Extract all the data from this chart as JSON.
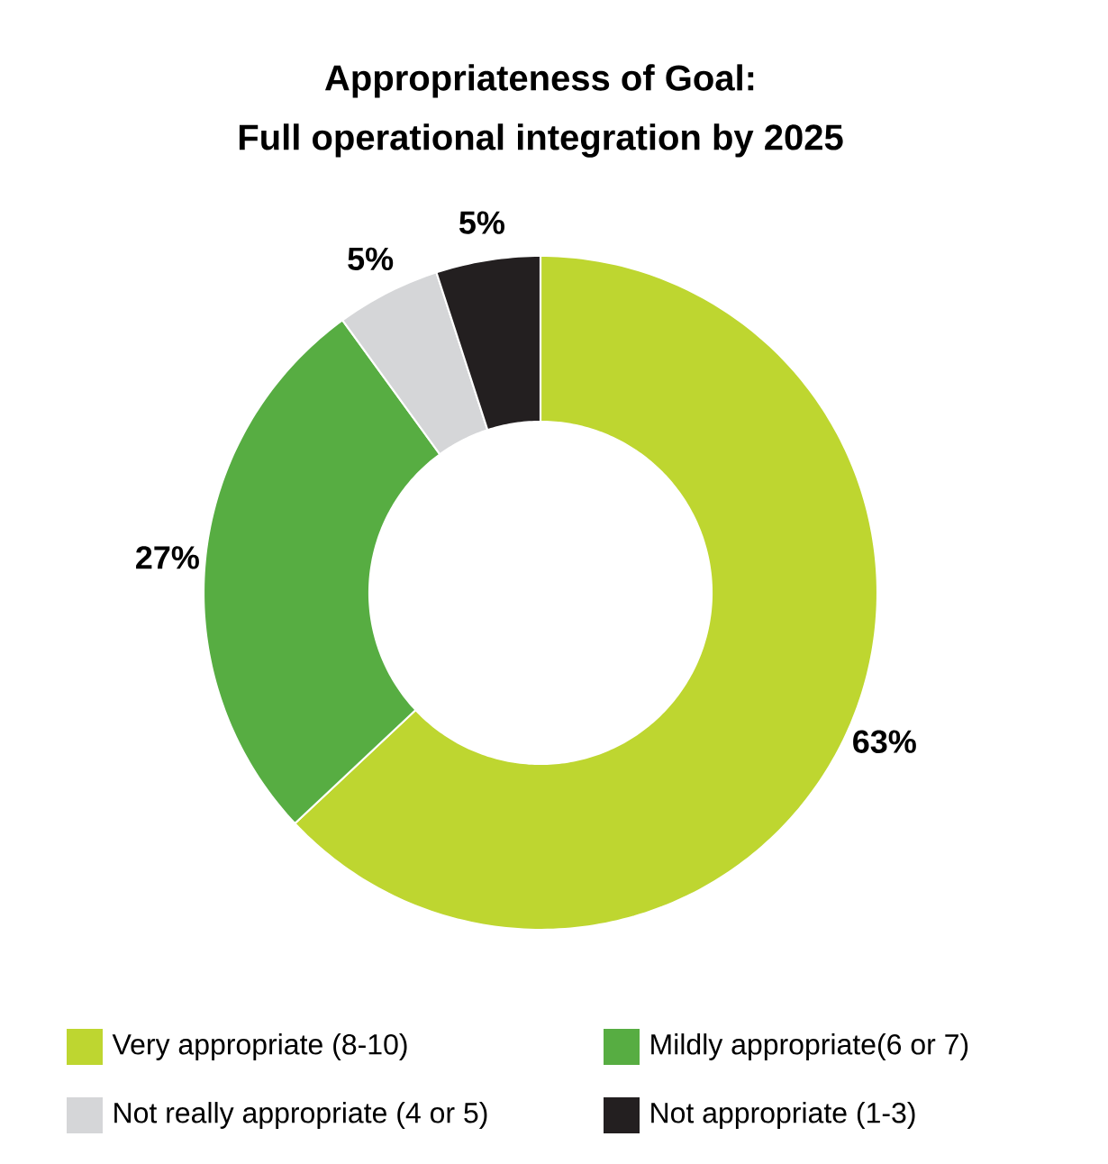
{
  "chart_data": {
    "type": "donut",
    "title": "Appropriateness of Goal:",
    "subtitle": "Full operational integration by 2025",
    "categories": [
      "Very appropriate (8-10)",
      "Mildly appropriate(6 or 7)",
      "Not really appropriate (4 or 5)",
      "Not appropriate (1-3)"
    ],
    "values": [
      63,
      27,
      5,
      5
    ],
    "colors": [
      "#bed630",
      "#57ad42",
      "#d5d6d8",
      "#231f20"
    ],
    "value_labels": [
      "63%",
      "27%",
      "5%",
      "5%"
    ],
    "legend": "bottom"
  }
}
